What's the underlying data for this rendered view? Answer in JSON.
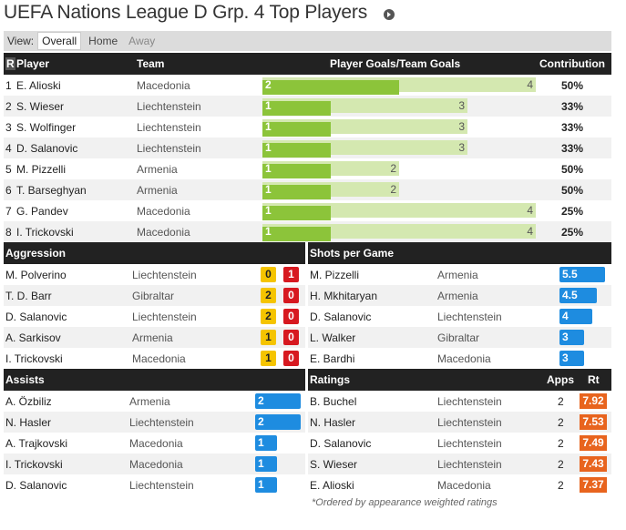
{
  "page": {
    "title": "UEFA Nations League D Grp. 4 Top Players",
    "arrow_icon": "circle-arrow-right-icon"
  },
  "view": {
    "label": "View:",
    "options": [
      "Overall",
      "Home",
      "Away"
    ],
    "selected": "Overall"
  },
  "top_players": {
    "headers": {
      "rank": "R",
      "player": "Player",
      "team": "Team",
      "goals": "Player Goals/Team Goals",
      "contribution": "Contribution"
    },
    "rows": [
      {
        "rank": "1",
        "player": "E. Alioski",
        "team": "Macedonia",
        "goals": "2",
        "team_goals": "4",
        "contribution": "50%"
      },
      {
        "rank": "2",
        "player": "S. Wieser",
        "team": "Liechtenstein",
        "goals": "1",
        "team_goals": "3",
        "contribution": "33%"
      },
      {
        "rank": "3",
        "player": "S. Wolfinger",
        "team": "Liechtenstein",
        "goals": "1",
        "team_goals": "3",
        "contribution": "33%"
      },
      {
        "rank": "4",
        "player": "D. Salanovic",
        "team": "Liechtenstein",
        "goals": "1",
        "team_goals": "3",
        "contribution": "33%"
      },
      {
        "rank": "5",
        "player": "M. Pizzelli",
        "team": "Armenia",
        "goals": "1",
        "team_goals": "2",
        "contribution": "50%"
      },
      {
        "rank": "6",
        "player": "T. Barseghyan",
        "team": "Armenia",
        "goals": "1",
        "team_goals": "2",
        "contribution": "50%"
      },
      {
        "rank": "7",
        "player": "G. Pandev",
        "team": "Macedonia",
        "goals": "1",
        "team_goals": "4",
        "contribution": "25%"
      },
      {
        "rank": "8",
        "player": "I. Trickovski",
        "team": "Macedonia",
        "goals": "1",
        "team_goals": "4",
        "contribution": "25%"
      }
    ]
  },
  "aggression": {
    "title": "Aggression",
    "rows": [
      {
        "player": "M. Polverino",
        "team": "Liechtenstein",
        "yellow": "0",
        "red": "1"
      },
      {
        "player": "T. D. Barr",
        "team": "Gibraltar",
        "yellow": "2",
        "red": "0"
      },
      {
        "player": "D. Salanovic",
        "team": "Liechtenstein",
        "yellow": "2",
        "red": "0"
      },
      {
        "player": "A. Sarkisov",
        "team": "Armenia",
        "yellow": "1",
        "red": "0"
      },
      {
        "player": "I. Trickovski",
        "team": "Macedonia",
        "yellow": "1",
        "red": "0"
      }
    ]
  },
  "shots": {
    "title": "Shots per Game",
    "rows": [
      {
        "player": "M. Pizzelli",
        "team": "Armenia",
        "value": "5.5"
      },
      {
        "player": "H. Mkhitaryan",
        "team": "Armenia",
        "value": "4.5"
      },
      {
        "player": "D. Salanovic",
        "team": "Liechtenstein",
        "value": "4"
      },
      {
        "player": "L. Walker",
        "team": "Gibraltar",
        "value": "3"
      },
      {
        "player": "E. Bardhi",
        "team": "Macedonia",
        "value": "3"
      }
    ]
  },
  "assists": {
    "title": "Assists",
    "rows": [
      {
        "player": "A. Özbiliz",
        "team": "Armenia",
        "value": "2"
      },
      {
        "player": "N. Hasler",
        "team": "Liechtenstein",
        "value": "2"
      },
      {
        "player": "A. Trajkovski",
        "team": "Macedonia",
        "value": "1"
      },
      {
        "player": "I. Trickovski",
        "team": "Macedonia",
        "value": "1"
      },
      {
        "player": "D. Salanovic",
        "team": "Liechtenstein",
        "value": "1"
      }
    ]
  },
  "ratings": {
    "title": "Ratings",
    "apps_label": "Apps",
    "rt_label": "Rt",
    "rows": [
      {
        "player": "B. Buchel",
        "team": "Liechtenstein",
        "apps": "2",
        "rating": "7.92"
      },
      {
        "player": "N. Hasler",
        "team": "Liechtenstein",
        "apps": "2",
        "rating": "7.53"
      },
      {
        "player": "D. Salanovic",
        "team": "Liechtenstein",
        "apps": "2",
        "rating": "7.49"
      },
      {
        "player": "S. Wieser",
        "team": "Liechtenstein",
        "apps": "2",
        "rating": "7.43"
      },
      {
        "player": "E. Alioski",
        "team": "Macedonia",
        "apps": "2",
        "rating": "7.37"
      }
    ],
    "footnote": "*Ordered by appearance weighted ratings"
  }
}
